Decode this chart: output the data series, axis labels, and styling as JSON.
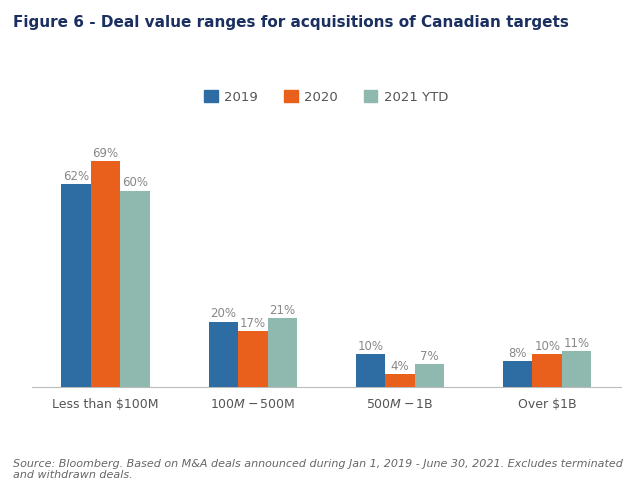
{
  "title": "Figure 6 - Deal value ranges for acquisitions of Canadian targets",
  "categories": [
    "Less than $100M",
    "$100M - $500M",
    "$500M - $1B",
    "Over $1B"
  ],
  "series": {
    "2019": [
      62,
      20,
      10,
      8
    ],
    "2020": [
      69,
      17,
      4,
      10
    ],
    "2021 YTD": [
      60,
      21,
      7,
      11
    ]
  },
  "colors": {
    "2019": "#2E6DA4",
    "2020": "#E8601C",
    "2021 YTD": "#8FB8AF"
  },
  "title_color": "#1B3060",
  "title_fontsize": 11,
  "legend_fontsize": 9.5,
  "label_fontsize": 8.5,
  "tick_fontsize": 9,
  "bar_width": 0.2,
  "ylim": [
    0,
    80
  ],
  "source_text": "Source: Bloomberg. Based on M&A deals announced during Jan 1, 2019 - June 30, 2021. Excludes terminated\nand withdrawn deals.",
  "source_fontsize": 8,
  "background_color": "#FFFFFF",
  "label_color": "#888888"
}
